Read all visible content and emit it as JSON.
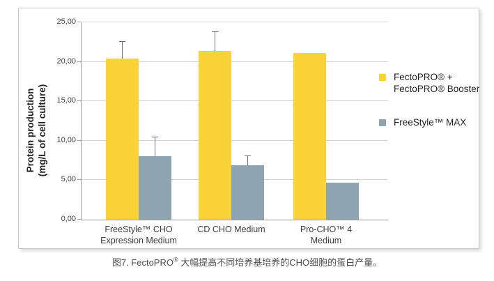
{
  "figure": {
    "caption": {
      "prefix": "图7. FectoPRO",
      "sup_symbol": "®",
      "suffix": " 大幅提高不同培养基培养的CHO细胞的蛋白产量。"
    }
  },
  "chart_data": {
    "type": "bar",
    "title": "",
    "ylabel": [
      "Protein production",
      "(mg/L of cell culture)"
    ],
    "categories": [
      [
        "FreeStyle™ CHO",
        "Expression  Medium"
      ],
      [
        "CD CHO Medium"
      ],
      [
        "Pro-CHO™ 4",
        "Medium"
      ]
    ],
    "series": [
      {
        "name": "FectoPRO® + FectoPRO® Booster",
        "color": "#FBD338",
        "values": [
          20.4,
          21.4,
          21.1
        ],
        "errors": [
          2.2,
          2.5,
          0
        ]
      },
      {
        "name": "FreeStyle™ MAX",
        "color": "#8EA5B1",
        "values": [
          8.0,
          6.9,
          4.7
        ],
        "errors": [
          2.5,
          1.2,
          0
        ]
      }
    ],
    "ylim": [
      0,
      25
    ],
    "ytick_step": 5,
    "ytick_labels": [
      "0,00",
      "5,00",
      "10,00",
      "15,00",
      "20,00",
      "25,00"
    ],
    "grid": true,
    "legend_position": "right",
    "legend": [
      {
        "lines": [
          "FectoPRO® +",
          "FectoPRO® Booster"
        ],
        "color": "#FBD338"
      },
      {
        "lines": [
          "FreeStyle™ MAX"
        ],
        "color": "#8EA5B1"
      }
    ],
    "error_bar_color": "#6E6E6E"
  }
}
